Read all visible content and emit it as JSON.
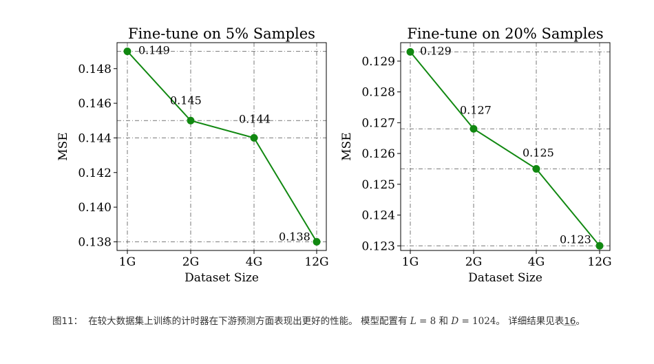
{
  "chart_data": [
    {
      "type": "line",
      "title": "Fine-tune on 5% Samples",
      "xlabel": "Dataset Size",
      "ylabel": "MSE",
      "categories": [
        "1G",
        "2G",
        "4G",
        "12G"
      ],
      "values": [
        0.149,
        0.145,
        0.144,
        0.138
      ],
      "value_labels": [
        "0.149",
        "0.145",
        "0.144",
        "0.138"
      ],
      "ylim": [
        0.1375,
        0.1495
      ],
      "yticks": [
        0.138,
        0.14,
        0.142,
        0.144,
        0.146,
        0.148
      ],
      "ytick_labels": [
        "0.138",
        "0.140",
        "0.142",
        "0.144",
        "0.146",
        "0.148"
      ],
      "hlines": [
        0.149,
        0.145,
        0.144,
        0.138
      ],
      "grid": true,
      "line_color": "#118811",
      "marker_color": "#118811"
    },
    {
      "type": "line",
      "title": "Fine-tune on 20% Samples",
      "xlabel": "Dataset Size",
      "ylabel": "MSE",
      "categories": [
        "1G",
        "2G",
        "4G",
        "12G"
      ],
      "values": [
        0.1293,
        0.1268,
        0.1255,
        0.123
      ],
      "value_labels": [
        "0.129",
        "0.127",
        "0.125",
        "0.123"
      ],
      "ylim": [
        0.12285,
        0.1296
      ],
      "yticks": [
        0.123,
        0.124,
        0.125,
        0.126,
        0.127,
        0.128,
        0.129
      ],
      "ytick_labels": [
        "0.123",
        "0.124",
        "0.125",
        "0.126",
        "0.127",
        "0.128",
        "0.129"
      ],
      "hlines": [
        0.1293,
        0.1268,
        0.1255,
        0.123
      ],
      "grid": true,
      "line_color": "#118811",
      "marker_color": "#118811"
    }
  ],
  "caption": {
    "label": "图11：",
    "text_before": "在较大数据集上训练的计时器在下游预测方面表现出更好的性能。 模型配置有",
    "L_var": "L",
    "L_eq": " = 8",
    "and": " 和 ",
    "D_var": "D",
    "D_eq": " = 1024",
    "text_after": "。 详细结果见表",
    "ref": "16",
    "end": "。"
  }
}
